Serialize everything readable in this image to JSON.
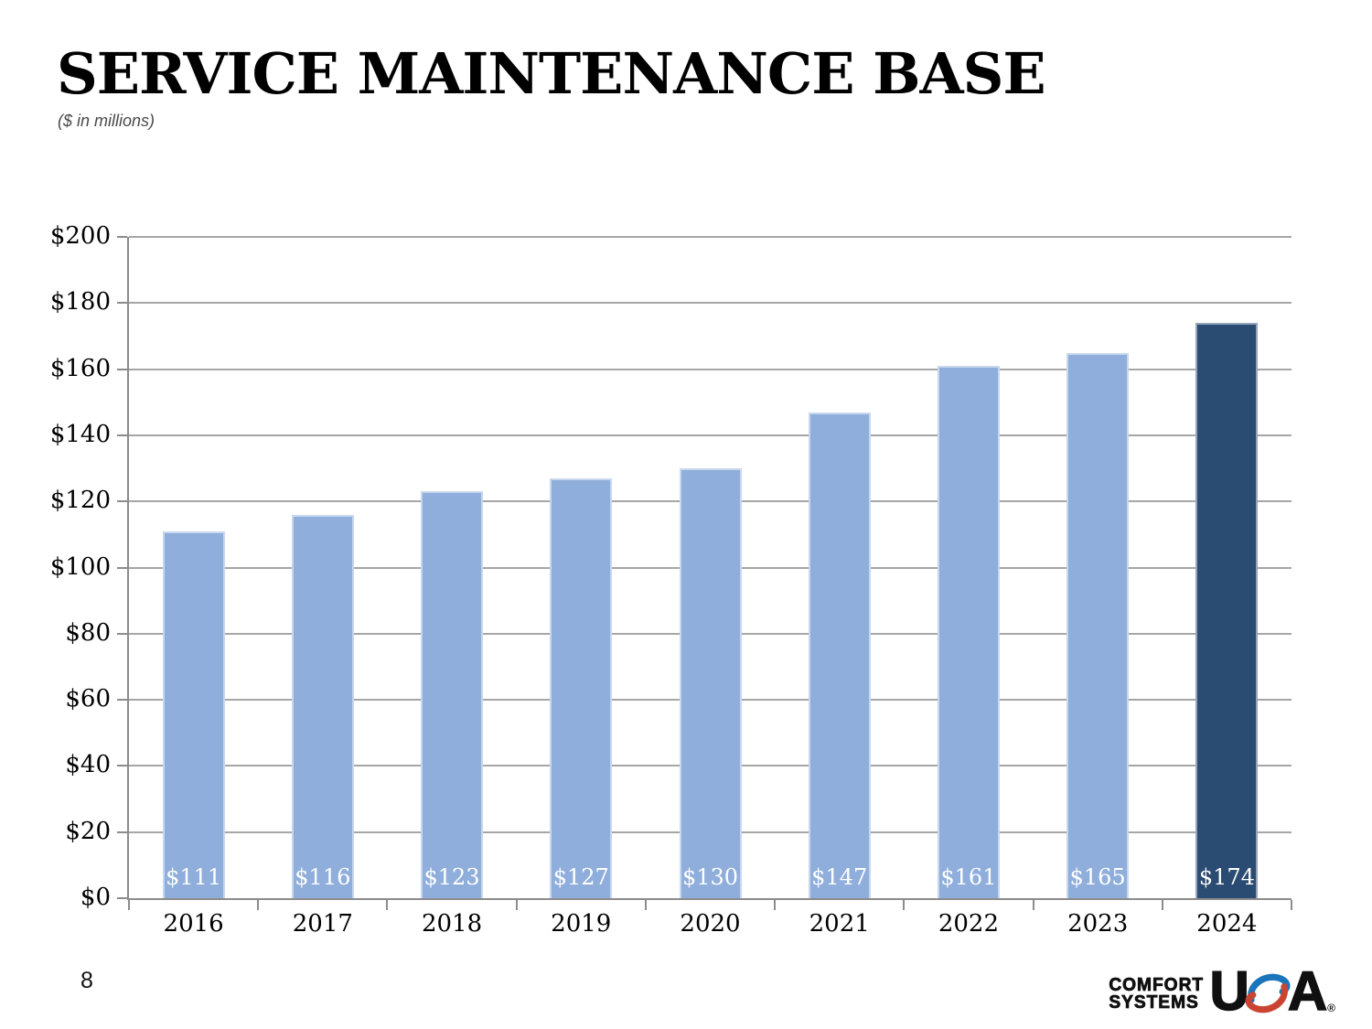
{
  "slide": {
    "title": "SERVICE MAINTENANCE BASE",
    "subtitle": "($ in millions)",
    "page_number": "8"
  },
  "chart_data": {
    "type": "bar",
    "title": "SERVICE MAINTENANCE BASE",
    "subtitle": "($ in millions)",
    "categories": [
      "2016",
      "2017",
      "2018",
      "2019",
      "2020",
      "2021",
      "2022",
      "2023",
      "2024"
    ],
    "values": [
      111,
      116,
      123,
      127,
      130,
      147,
      161,
      165,
      174
    ],
    "bar_labels": [
      "$111",
      "$116",
      "$123",
      "$127",
      "$130",
      "$147",
      "$161",
      "$165",
      "$174"
    ],
    "xlabel": "",
    "ylabel": "",
    "ylim": [
      0,
      200
    ],
    "ytick_step": 20,
    "ytick_labels": [
      "$0",
      "$20",
      "$40",
      "$60",
      "$80",
      "$100",
      "$120",
      "$140",
      "$160",
      "$180",
      "$200"
    ],
    "grid": true,
    "legend": false,
    "highlight_index": 8,
    "colors": {
      "bar": "#8FAEDB",
      "bar_highlight": "#2B4C72",
      "bar_label_text": "#FFFFFF",
      "gridline": "#A6A6A6",
      "axis": "#8C8C8C"
    }
  },
  "logo": {
    "line1": "COMFORT",
    "line2": "SYSTEMS",
    "usa_u": "U",
    "usa_a": "A",
    "registered": "®",
    "colors": {
      "text": "#101010",
      "swoosh_blue": "#1B75BB",
      "swoosh_red": "#C94431"
    }
  }
}
